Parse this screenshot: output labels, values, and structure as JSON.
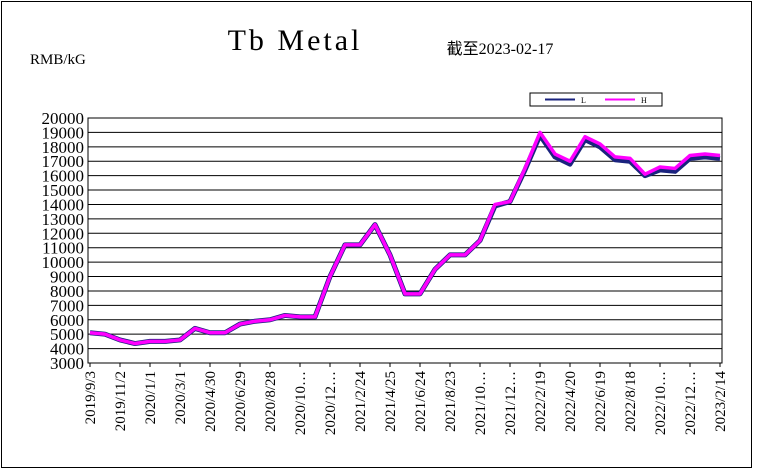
{
  "chart_data": {
    "type": "line",
    "title": "Tb Metal",
    "subtitle": "截至2023-02-17",
    "y_label": "RMB/kG",
    "categories": [
      "2019/9/3",
      null,
      "2019/11/2",
      null,
      "2020/1/1",
      null,
      "2020/3/1",
      null,
      "2020/4/30",
      null,
      "2020/6/29",
      null,
      "2020/8/28",
      null,
      "2020/10…",
      null,
      "2020/12…",
      null,
      "2021/2/24",
      null,
      "2021/4/25",
      null,
      "2021/6/24",
      null,
      "2021/8/23",
      null,
      "2021/10…",
      null,
      "2021/12…",
      null,
      "2022/2/19",
      null,
      "2022/4/20",
      null,
      "2022/6/19",
      null,
      "2022/8/18",
      null,
      "2022/10…",
      null,
      "2022/12…",
      null,
      "2023/2/14"
    ],
    "series": [
      {
        "name": "L",
        "color": "#1a237e",
        "values": [
          5100,
          5000,
          4600,
          4350,
          4500,
          4500,
          4600,
          5400,
          5100,
          5100,
          5700,
          5900,
          6000,
          6300,
          6200,
          6200,
          9000,
          11200,
          11200,
          12600,
          10500,
          7800,
          7800,
          9500,
          10500,
          10500,
          11500,
          13900,
          14200,
          16400,
          18800,
          17300,
          16800,
          18500,
          18000,
          17100,
          17000,
          16000,
          16400,
          16300,
          17200,
          17300,
          17200
        ]
      },
      {
        "name": "H",
        "color": "#ff00ff",
        "values": [
          5100,
          5000,
          4600,
          4350,
          4500,
          4500,
          4600,
          5400,
          5100,
          5100,
          5700,
          5900,
          6000,
          6300,
          6200,
          6200,
          9000,
          11200,
          11200,
          12600,
          10500,
          7800,
          7800,
          9500,
          10500,
          10500,
          11500,
          14000,
          14200,
          16500,
          19000,
          17500,
          17000,
          18700,
          18200,
          17300,
          17200,
          16100,
          16600,
          16500,
          17400,
          17500,
          17400
        ]
      }
    ],
    "ylim": [
      3000,
      20000
    ],
    "yticks": [
      3000,
      4000,
      5000,
      6000,
      7000,
      8000,
      9000,
      10000,
      11000,
      12000,
      13000,
      14000,
      15000,
      16000,
      17000,
      18000,
      19000,
      20000
    ],
    "grid": true
  }
}
